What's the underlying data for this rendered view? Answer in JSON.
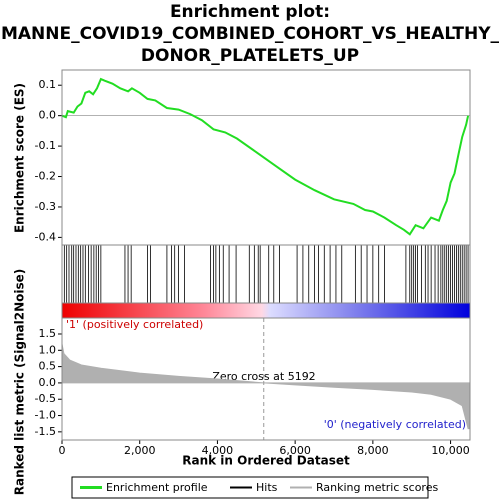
{
  "chart_data": [
    {
      "type": "line",
      "title": [
        "Enrichment plot:",
        "MANNE_COVID19_COMBINED_COHORT_VS_HEALTHY_",
        "DONOR_PLATELETS_UP"
      ],
      "ylabel": "Enrichment score (ES)",
      "xlim": [
        0,
        10500
      ],
      "ylim": [
        -0.425,
        0.15
      ],
      "yticks": [
        0.1,
        {
          "value": 0,
          "label": "0.0"
        },
        -0.1,
        -0.2,
        -0.3,
        -0.4
      ],
      "series": [
        {
          "name": "Enrichment profile",
          "color": "#22dd22",
          "x": [
            0,
            100,
            150,
            300,
            400,
            500,
            600,
            700,
            800,
            900,
            1000,
            1100,
            1300,
            1500,
            1700,
            1800,
            2000,
            2200,
            2400,
            2700,
            3000,
            3300,
            3600,
            3900,
            4200,
            4500,
            5000,
            5500,
            6000,
            6500,
            7000,
            7500,
            7800,
            8000,
            8300,
            8600,
            8800,
            8950,
            9100,
            9300,
            9500,
            9700,
            9800,
            9900,
            10000,
            10100,
            10200,
            10300,
            10400,
            10450
          ],
          "values": [
            0,
            -0.005,
            0.015,
            0.01,
            0.03,
            0.04,
            0.075,
            0.08,
            0.07,
            0.09,
            0.12,
            0.115,
            0.105,
            0.09,
            0.08,
            0.09,
            0.075,
            0.055,
            0.05,
            0.025,
            0.02,
            0.005,
            -0.015,
            -0.045,
            -0.055,
            -0.075,
            -0.12,
            -0.165,
            -0.21,
            -0.245,
            -0.275,
            -0.29,
            -0.31,
            -0.315,
            -0.335,
            -0.36,
            -0.375,
            -0.39,
            -0.36,
            -0.37,
            -0.335,
            -0.345,
            -0.31,
            -0.28,
            -0.22,
            -0.19,
            -0.13,
            -0.07,
            -0.03,
            0
          ]
        },
        {
          "name": "Hits",
          "color": "#000000",
          "x": [
            60,
            120,
            180,
            250,
            300,
            360,
            420,
            480,
            540,
            600,
            680,
            750,
            820,
            880,
            940,
            1000,
            1620,
            1700,
            1780,
            2200,
            2280,
            2700,
            2820,
            2900,
            3000,
            3150,
            3820,
            3900,
            3960,
            4050,
            4150,
            4300,
            4480,
            4820,
            4950,
            5050,
            5100,
            5320,
            5450,
            5600,
            6050,
            6200,
            6350,
            6500,
            6600,
            6750,
            6900,
            7050,
            7200,
            7550,
            7700,
            7850,
            8000,
            8150,
            8300,
            8850,
            8950,
            9000,
            9050,
            9100,
            9150,
            9250,
            9350,
            9420,
            9500,
            9600,
            9680,
            9750,
            9800,
            9850,
            9900,
            9950,
            10000,
            10050,
            10100,
            10150,
            10200,
            10250,
            10300,
            10350,
            10400,
            10450
          ]
        }
      ]
    },
    {
      "type": "area",
      "ylabel": "Ranked list metric (Signal2Noise)",
      "xlabel": "Rank in Ordered Dataset",
      "pos_label": "'1' (positively correlated)",
      "neg_label": "'0' (negatively correlated)",
      "annotation": "Zero cross at 5192",
      "zero_cross": 5192,
      "xlim": [
        0,
        10500
      ],
      "xticks": [
        0,
        {
          "value": 2000,
          "label": "2,000"
        },
        {
          "value": 4000,
          "label": "4,000"
        },
        {
          "value": 6000,
          "label": "6,000"
        },
        {
          "value": 8000,
          "label": "8,000"
        },
        {
          "value": 10000,
          "label": "10,000"
        }
      ],
      "ylim": [
        -1.75,
        1.99
      ],
      "yticks": [
        1.5,
        {
          "value": 1,
          "label": "1.0"
        },
        0.5,
        {
          "value": 0,
          "label": "0.0"
        },
        -0.5,
        {
          "value": -1,
          "label": "-1.0"
        },
        -1.5
      ],
      "series": [
        {
          "name": "Ranking metric scores",
          "color": "#b0b0b0",
          "x": [
            0,
            50,
            200,
            500,
            1000,
            2000,
            3000,
            4000,
            5192,
            6000,
            7000,
            8000,
            9000,
            9500,
            10000,
            10300,
            10450,
            10500
          ],
          "values": [
            1.2,
            0.9,
            0.7,
            0.55,
            0.45,
            0.3,
            0.2,
            0.12,
            0,
            -0.06,
            -0.13,
            -0.2,
            -0.28,
            -0.35,
            -0.5,
            -0.7,
            -1.4,
            -1.4
          ]
        }
      ]
    }
  ]
}
